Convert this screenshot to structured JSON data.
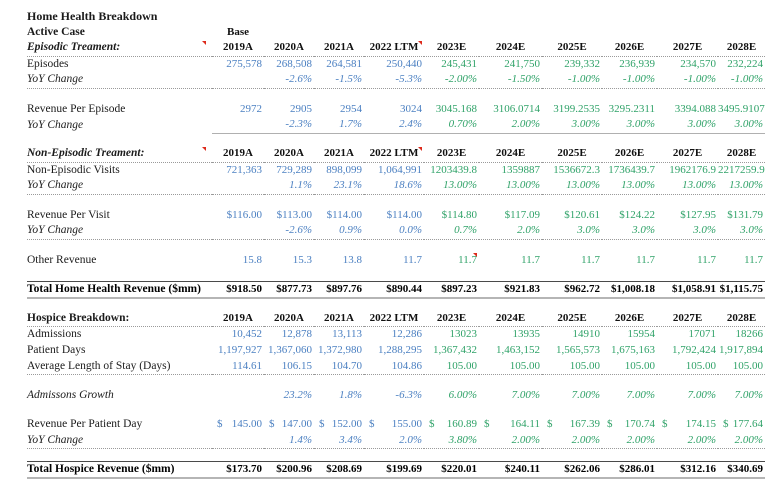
{
  "title": "Home Health Breakdown",
  "currency_symbol": "$",
  "actual_columns": 4,
  "colors": {
    "actual": "#4a7fc1",
    "estimate": "#2fa268",
    "text": "#1b1b1b",
    "comment_marker": "#dd2b1c"
  },
  "columns": [
    "2019A",
    "2020A",
    "2021A",
    "2022 LTM",
    "2023E",
    "2024E",
    "2025E",
    "2026E",
    "2027E",
    "2028E"
  ],
  "rows": [
    {
      "id": "title",
      "type": "title",
      "label": "Home Health Breakdown"
    },
    {
      "id": "active-case",
      "type": "scenario",
      "label": "Active Case",
      "scenario_value": "Base"
    },
    {
      "id": "episodic-header",
      "type": "header",
      "label": "Episodic Treament:",
      "label_style": "bold-italic",
      "rule": "dotted",
      "label_marker": true,
      "marker_cols": [
        3
      ]
    },
    {
      "id": "episodes",
      "type": "data",
      "label": "Episodes",
      "values": [
        "275,578",
        "268,508",
        "264,581",
        "250,440",
        "245,431",
        "241,750",
        "239,332",
        "236,939",
        "234,570",
        "232,224"
      ]
    },
    {
      "id": "episodes-yoy",
      "type": "yoy",
      "label": "YoY Change",
      "rule": "dotted",
      "values": [
        "",
        "-2.6%",
        "-1.5%",
        "-5.3%",
        "-2.00%",
        "-1.50%",
        "-1.00%",
        "-1.00%",
        "-1.00%",
        "-1.00%"
      ]
    },
    {
      "type": "blank"
    },
    {
      "id": "revenue-per-episode",
      "type": "data",
      "label": "Revenue Per Episode",
      "values": [
        "2972",
        "2905",
        "2954",
        "3024",
        "3045.168",
        "3106.0714",
        "3199.2535",
        "3295.2311",
        "3394.088",
        "3495.9107"
      ]
    },
    {
      "id": "revenue-per-episode-yoy",
      "type": "yoy",
      "label": "YoY Change",
      "rule": "solid-data",
      "values": [
        "",
        "-2.3%",
        "1.7%",
        "2.4%",
        "0.70%",
        "2.00%",
        "3.00%",
        "3.00%",
        "3.00%",
        "3.00%"
      ]
    },
    {
      "type": "blank"
    },
    {
      "id": "non-episodic-header",
      "type": "header",
      "label": "Non-Episodic Treament:",
      "label_style": "bold-italic",
      "rule": "dotted",
      "label_marker": true,
      "marker_cols": [
        3
      ]
    },
    {
      "id": "non-episodic-visits",
      "type": "data",
      "label": "Non-Episodic Visits",
      "values": [
        "721,363",
        "729,289",
        "898,099",
        "1,064,991",
        "1203439.8",
        "1359887",
        "1536672.3",
        "1736439.7",
        "1962176.9",
        "2217259.9"
      ]
    },
    {
      "id": "non-episodic-visits-yoy",
      "type": "yoy",
      "label": "YoY Change",
      "rule": "dotted",
      "values": [
        "",
        "1.1%",
        "23.1%",
        "18.6%",
        "13.00%",
        "13.00%",
        "13.00%",
        "13.00%",
        "13.00%",
        "13.00%"
      ]
    },
    {
      "type": "blank"
    },
    {
      "id": "revenue-per-visit",
      "type": "data",
      "label": "Revenue Per Visit",
      "values": [
        "$116.00",
        "$113.00",
        "$114.00",
        "$114.00",
        "$114.80",
        "$117.09",
        "$120.61",
        "$124.22",
        "$127.95",
        "$131.79"
      ]
    },
    {
      "id": "revenue-per-visit-yoy",
      "type": "yoy",
      "label": "YoY Change",
      "rule": "dotted",
      "values": [
        "",
        "-2.6%",
        "0.9%",
        "0.0%",
        "0.7%",
        "2.0%",
        "3.0%",
        "3.0%",
        "3.0%",
        "3.0%"
      ]
    },
    {
      "type": "blank"
    },
    {
      "id": "other-revenue",
      "type": "data",
      "label": "Other Revenue",
      "marker_cols": [
        4
      ],
      "values": [
        "15.8",
        "15.3",
        "13.8",
        "11.7",
        "11.7",
        "11.7",
        "11.7",
        "11.7",
        "11.7",
        "11.7"
      ]
    },
    {
      "type": "blank"
    },
    {
      "id": "total-home-health",
      "type": "total",
      "label": "Total Home Health Revenue ($mm)",
      "values": [
        "$918.50",
        "$877.73",
        "$897.76",
        "$890.44",
        "$897.23",
        "$921.83",
        "$962.72",
        "$1,008.18",
        "$1,058.91",
        "$1,115.75"
      ]
    },
    {
      "type": "blank"
    },
    {
      "id": "hospice-header",
      "type": "header",
      "label": "Hospice Breakdown:",
      "label_style": "bold",
      "rule": "dotted"
    },
    {
      "id": "admissions",
      "type": "data",
      "label": "Admissions",
      "values": [
        "10,452",
        "12,878",
        "13,113",
        "12,286",
        "13023",
        "13935",
        "14910",
        "15954",
        "17071",
        "18266"
      ]
    },
    {
      "id": "patient-days",
      "type": "data",
      "label": "Patient Days",
      "values": [
        "1,197,927",
        "1,367,060",
        "1,372,980",
        "1,288,295",
        "1,367,432",
        "1,463,152",
        "1,565,573",
        "1,675,163",
        "1,792,424",
        "1,917,894"
      ]
    },
    {
      "id": "avg-length-of-stay",
      "type": "data",
      "label": "Average Length of Stay (Days)",
      "rule": "dotted",
      "values": [
        "114.61",
        "106.15",
        "104.70",
        "104.86",
        "105.00",
        "105.00",
        "105.00",
        "105.00",
        "105.00",
        "105.00"
      ]
    },
    {
      "type": "blank"
    },
    {
      "id": "admissions-growth",
      "type": "yoy",
      "label": "Admissons Growth",
      "values": [
        "",
        "23.2%",
        "1.8%",
        "-6.3%",
        "6.00%",
        "7.00%",
        "7.00%",
        "7.00%",
        "7.00%",
        "7.00%"
      ]
    },
    {
      "type": "blank"
    },
    {
      "id": "revenue-per-patient-day",
      "type": "accounting",
      "label": "Revenue Per Patient Day",
      "values": [
        "145.00",
        "147.00",
        "152.00",
        "155.00",
        "160.89",
        "164.11",
        "167.39",
        "170.74",
        "174.15",
        "177.64"
      ]
    },
    {
      "id": "revenue-per-patient-day-yoy",
      "type": "yoy",
      "label": "YoY Change",
      "rule": "dotted",
      "values": [
        "",
        "1.4%",
        "3.4%",
        "2.0%",
        "3.80%",
        "2.00%",
        "2.00%",
        "2.00%",
        "2.00%",
        "2.00%"
      ]
    },
    {
      "type": "blank"
    },
    {
      "id": "total-hospice",
      "type": "total",
      "label": "Total Hospice Revenue ($mm)",
      "values": [
        "$173.70",
        "$200.96",
        "$208.69",
        "$199.69",
        "$220.01",
        "$240.11",
        "$262.06",
        "$286.01",
        "$312.16",
        "$340.69"
      ]
    }
  ]
}
